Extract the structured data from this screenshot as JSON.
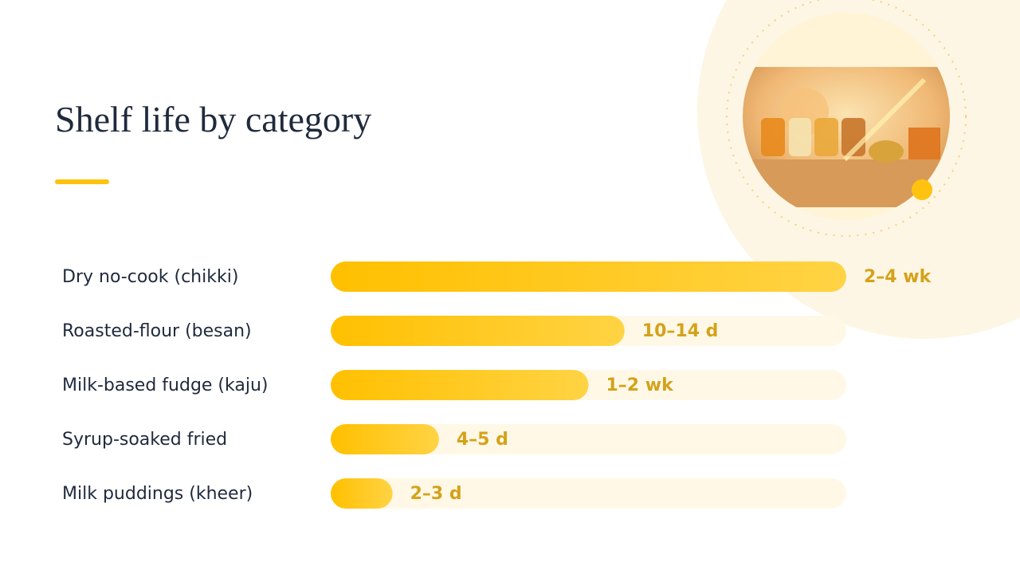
{
  "chart_data": {
    "type": "bar",
    "orientation": "horizontal",
    "title": "Shelf life by category",
    "categories": [
      "Dry no-cook (chikki)",
      "Roasted-flour (besan)",
      "Milk-based fudge (kaju)",
      "Syrup-soaked fried",
      "Milk puddings (kheer)"
    ],
    "values": [
      100,
      57,
      50,
      21,
      12
    ],
    "durations": [
      "2–4 wk",
      "10–14 d",
      "1–2 wk",
      "4–5 d",
      "2–3 d"
    ],
    "xlim": [
      0,
      100
    ],
    "color": "#ffc20e"
  }
}
